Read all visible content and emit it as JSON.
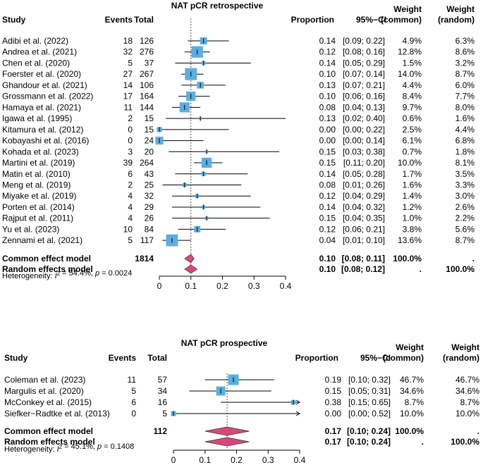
{
  "chart_data": [
    {
      "type": "forest",
      "title": "NAT pCR retrospective",
      "headers": {
        "study": "Study",
        "events": "Events",
        "total": "Total",
        "proportion": "Proportion",
        "ci": "95%−CI",
        "weight": "Weight",
        "common": "(common)",
        "random": "(random)"
      },
      "axis": {
        "ticks": [
          0,
          0.1,
          0.2,
          0.3,
          0.4
        ],
        "tick_labels": [
          "0",
          "0.1",
          "0.2",
          "0.3",
          "0.4"
        ],
        "range": [
          0,
          0.4
        ],
        "reference": 0.1
      },
      "studies": [
        {
          "name": "Adibi et al. (2022)",
          "events": "18",
          "total": "126",
          "prop": 0.14,
          "lo": 0.09,
          "hi": 0.22,
          "prop_label": "0.14",
          "ci_label": "[0.09; 0.22]",
          "w_common": "4.9%",
          "w_random": "6.3%",
          "weight": 4.9
        },
        {
          "name": "Andrea et al. (2021)",
          "events": "32",
          "total": "276",
          "prop": 0.12,
          "lo": 0.08,
          "hi": 0.16,
          "prop_label": "0.12",
          "ci_label": "[0.08; 0.16]",
          "w_common": "12.8%",
          "w_random": "8.6%",
          "weight": 12.8
        },
        {
          "name": "Chen et al. (2020)",
          "events": "5",
          "total": "37",
          "prop": 0.14,
          "lo": 0.05,
          "hi": 0.29,
          "prop_label": "0.14",
          "ci_label": "[0.05; 0.29]",
          "w_common": "1.5%",
          "w_random": "3.2%",
          "weight": 1.5
        },
        {
          "name": "Foerster et al. (2020)",
          "events": "27",
          "total": "267",
          "prop": 0.1,
          "lo": 0.07,
          "hi": 0.14,
          "prop_label": "0.10",
          "ci_label": "[0.07; 0.14]",
          "w_common": "14.0%",
          "w_random": "8.7%",
          "weight": 14.0
        },
        {
          "name": "Ghandour et al. (2021)",
          "events": "14",
          "total": "106",
          "prop": 0.13,
          "lo": 0.07,
          "hi": 0.21,
          "prop_label": "0.13",
          "ci_label": "[0.07; 0.21]",
          "w_common": "4.4%",
          "w_random": "6.0%",
          "weight": 4.4
        },
        {
          "name": "Grossmann et al. (2022)",
          "events": "17",
          "total": "164",
          "prop": 0.1,
          "lo": 0.06,
          "hi": 0.16,
          "prop_label": "0.10",
          "ci_label": "[0.06; 0.16]",
          "w_common": "8.4%",
          "w_random": "7.7%",
          "weight": 8.4
        },
        {
          "name": "Hamaya et al. (2021)",
          "events": "11",
          "total": "144",
          "prop": 0.08,
          "lo": 0.04,
          "hi": 0.13,
          "prop_label": "0.08",
          "ci_label": "[0.04; 0.13]",
          "w_common": "9.7%",
          "w_random": "8.0%",
          "weight": 9.7
        },
        {
          "name": "Igawa et al. (1995)",
          "events": "2",
          "total": "15",
          "prop": 0.13,
          "lo": 0.02,
          "hi": 0.4,
          "prop_label": "0.13",
          "ci_label": "[0.02; 0.40]",
          "w_common": "0.6%",
          "w_random": "1.6%",
          "weight": 0.6
        },
        {
          "name": "Kitamura et al. (2012)",
          "events": "0",
          "total": "15",
          "prop": 0.0,
          "lo": 0.0,
          "hi": 0.22,
          "prop_label": "0.00",
          "ci_label": "[0.00; 0.22]",
          "w_common": "2.5%",
          "w_random": "4.4%",
          "weight": 2.5
        },
        {
          "name": "Kobayashi et al. (2016)",
          "events": "0",
          "total": "24",
          "prop": 0.0,
          "lo": 0.0,
          "hi": 0.14,
          "prop_label": "0.00",
          "ci_label": "[0.00; 0.14]",
          "w_common": "6.1%",
          "w_random": "6.8%",
          "weight": 6.1
        },
        {
          "name": "Kohada et al. (2023)",
          "events": "3",
          "total": "20",
          "prop": 0.15,
          "lo": 0.03,
          "hi": 0.38,
          "prop_label": "0.15",
          "ci_label": "[0.03; 0.38]",
          "w_common": "0.7%",
          "w_random": "1.8%",
          "weight": 0.7
        },
        {
          "name": "Martini et al. (2019)",
          "events": "39",
          "total": "264",
          "prop": 0.15,
          "lo": 0.11,
          "hi": 0.2,
          "prop_label": "0.15",
          "ci_label": "[0.11; 0.20]",
          "w_common": "10.0%",
          "w_random": "8.1%",
          "weight": 10.0
        },
        {
          "name": "Matin et al. (2010)",
          "events": "6",
          "total": "43",
          "prop": 0.14,
          "lo": 0.05,
          "hi": 0.28,
          "prop_label": "0.14",
          "ci_label": "[0.05; 0.28]",
          "w_common": "1.7%",
          "w_random": "3.5%",
          "weight": 1.7
        },
        {
          "name": "Meng et al. (2019)",
          "events": "2",
          "total": "25",
          "prop": 0.08,
          "lo": 0.01,
          "hi": 0.26,
          "prop_label": "0.08",
          "ci_label": "[0.01; 0.26]",
          "w_common": "1.6%",
          "w_random": "3.3%",
          "weight": 1.6
        },
        {
          "name": "Miyake et al. (2019)",
          "events": "4",
          "total": "32",
          "prop": 0.12,
          "lo": 0.04,
          "hi": 0.29,
          "prop_label": "0.12",
          "ci_label": "[0.04; 0.29]",
          "w_common": "1.4%",
          "w_random": "3.0%",
          "weight": 1.4
        },
        {
          "name": "Porten et al. (2014)",
          "events": "4",
          "total": "29",
          "prop": 0.14,
          "lo": 0.04,
          "hi": 0.32,
          "prop_label": "0.14",
          "ci_label": "[0.04; 0.32]",
          "w_common": "1.2%",
          "w_random": "2.6%",
          "weight": 1.2
        },
        {
          "name": "Rajput et al. (2011)",
          "events": "4",
          "total": "26",
          "prop": 0.15,
          "lo": 0.04,
          "hi": 0.35,
          "prop_label": "0.15",
          "ci_label": "[0.04; 0.35]",
          "w_common": "1.0%",
          "w_random": "2.2%",
          "weight": 1.0
        },
        {
          "name": "Yu et al. (2023)",
          "events": "10",
          "total": "84",
          "prop": 0.12,
          "lo": 0.06,
          "hi": 0.21,
          "prop_label": "0.12",
          "ci_label": "[0.06; 0.21]",
          "w_common": "3.8%",
          "w_random": "5.6%",
          "weight": 3.8
        },
        {
          "name": "Zennami et al. (2021)",
          "events": "5",
          "total": "117",
          "prop": 0.04,
          "lo": 0.01,
          "hi": 0.1,
          "prop_label": "0.04",
          "ci_label": "[0.01; 0.10]",
          "w_common": "13.6%",
          "w_random": "8.7%",
          "weight": 13.6
        }
      ],
      "summaries": [
        {
          "name": "Common effect model",
          "total": "1814",
          "prop": 0.1,
          "lo": 0.08,
          "hi": 0.11,
          "prop_label": "0.10",
          "ci_label": "[0.08; 0.11]",
          "w_common": "100.0%",
          "w_random": "."
        },
        {
          "name": "Random effects model",
          "total": "",
          "prop": 0.1,
          "lo": 0.08,
          "hi": 0.12,
          "prop_label": "0.10",
          "ci_label": "[0.08; 0.12]",
          "w_common": ".",
          "w_random": "100.0%"
        }
      ],
      "heterogeneity": {
        "prefix": "Heterogeneity: ",
        "i2_symbol": "I",
        "i2_value": " = 54.4%, ",
        "p_symbol": "p",
        "p_value": " = 0.0024"
      }
    },
    {
      "type": "forest",
      "title": "NAT pCR prospective",
      "headers": {
        "study": "Study",
        "events": "Events",
        "total": "Total",
        "proportion": "Proportion",
        "ci": "95%−CI",
        "weight": "Weight",
        "common": "(common)",
        "random": "(random)"
      },
      "axis": {
        "ticks": [
          0,
          0.1,
          0.2,
          0.3,
          0.4
        ],
        "tick_labels": [
          "0",
          "0.1",
          "0.2",
          "0.3",
          "0.4"
        ],
        "range": [
          0,
          0.4
        ],
        "reference": 0.17
      },
      "studies": [
        {
          "name": "Coleman et al. (2023)",
          "events": "11",
          "total": "57",
          "prop": 0.19,
          "lo": 0.1,
          "hi": 0.32,
          "prop_label": "0.19",
          "ci_label": "[0.10; 0.32]",
          "w_common": "46.7%",
          "w_random": "46.7%",
          "weight": 46.7
        },
        {
          "name": "Margulis et al. (2020)",
          "events": "5",
          "total": "34",
          "prop": 0.15,
          "lo": 0.05,
          "hi": 0.31,
          "prop_label": "0.15",
          "ci_label": "[0.05; 0.31]",
          "w_common": "34.6%",
          "w_random": "34.6%",
          "weight": 34.6
        },
        {
          "name": "McConkey et al. (2015)",
          "events": "6",
          "total": "16",
          "prop": 0.38,
          "lo": 0.15,
          "hi": 0.65,
          "prop_label": "0.38",
          "ci_label": "[0.15; 0.65]",
          "w_common": "8.7%",
          "w_random": "8.7%",
          "weight": 8.7
        },
        {
          "name": "Siefker−Radtke et al. (2013)",
          "events": "0",
          "total": "5",
          "prop": 0.0,
          "lo": 0.0,
          "hi": 0.52,
          "prop_label": "0.00",
          "ci_label": "[0.00; 0.52]",
          "w_common": "10.0%",
          "w_random": "10.0%",
          "weight": 10.0
        }
      ],
      "summaries": [
        {
          "name": "Common effect model",
          "total": "112",
          "prop": 0.17,
          "lo": 0.1,
          "hi": 0.24,
          "prop_label": "0.17",
          "ci_label": "[0.10; 0.24]",
          "w_common": "100.0%",
          "w_random": "."
        },
        {
          "name": "Random effects model",
          "total": "",
          "prop": 0.17,
          "lo": 0.1,
          "hi": 0.24,
          "prop_label": "0.17",
          "ci_label": "[0.10; 0.24]",
          "w_common": ".",
          "w_random": "100.0%"
        }
      ],
      "heterogeneity": {
        "prefix": "Heterogeneity: ",
        "i2_symbol": "I",
        "i2_value": " = 45.1%, ",
        "p_symbol": "p",
        "p_value": " = 0.1408"
      }
    }
  ],
  "colors": {
    "square": "#5aaee0",
    "diamond": "#d9487a",
    "line": "#000000",
    "ref": "#777777"
  }
}
